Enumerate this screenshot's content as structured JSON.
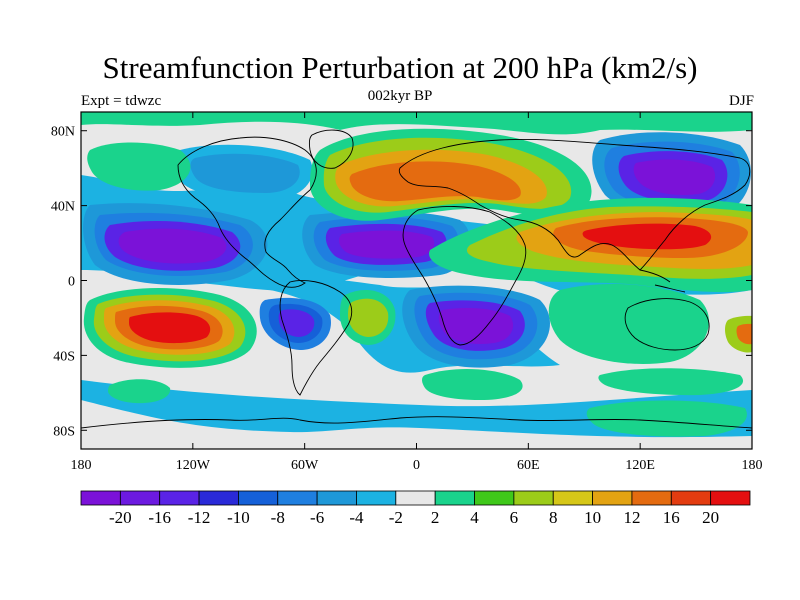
{
  "header": {
    "title": "Streamfunction Perturbation at 200 hPa (km2/s)",
    "left_label": "Expt = tdwzc",
    "center_label": "002kyr BP",
    "right_label": "DJF"
  },
  "map": {
    "projection": "cylindrical-equidistant",
    "lon_range": [
      -180,
      180
    ],
    "lat_range": [
      -90,
      90
    ],
    "lon_ticks": [
      {
        "value": -180,
        "label": "180"
      },
      {
        "value": -120,
        "label": "120W"
      },
      {
        "value": -60,
        "label": "60W"
      },
      {
        "value": 0,
        "label": "0"
      },
      {
        "value": 60,
        "label": "60E"
      },
      {
        "value": 120,
        "label": "120E"
      },
      {
        "value": 180,
        "label": "180"
      }
    ],
    "lat_ticks": [
      {
        "value": 80,
        "label": "80N"
      },
      {
        "value": 40,
        "label": "40N"
      },
      {
        "value": 0,
        "label": "0"
      },
      {
        "value": -40,
        "label": "40S"
      },
      {
        "value": -80,
        "label": "80S"
      }
    ],
    "background_color": "#e8e8e8",
    "coastline_color": "#000000"
  },
  "colorbar": {
    "colors": [
      "#7b12d8",
      "#6c1ae0",
      "#5a23e6",
      "#2a2ad8",
      "#1560d8",
      "#1f7fe0",
      "#1e98d8",
      "#1cb2e2",
      "#e8e8e8",
      "#1ad38c",
      "#3fc81a",
      "#9ccc19",
      "#d6c718",
      "#e3a312",
      "#e46b10",
      "#e33c10",
      "#e40f10"
    ],
    "labels": [
      "-20",
      "-16",
      "-12",
      "-10",
      "-8",
      "-6",
      "-4",
      "-2",
      "2",
      "4",
      "6",
      "8",
      "10",
      "12",
      "16",
      "20"
    ]
  },
  "chart_data": {
    "type": "heatmap",
    "title": "Streamfunction Perturbation at 200 hPa (km2/s)",
    "subtitle": "002kyr BP",
    "levels": [
      -20,
      -16,
      -12,
      -10,
      -8,
      -6,
      -4,
      -2,
      2,
      4,
      6,
      8,
      10,
      12,
      16,
      20
    ],
    "xlim": [
      -180,
      180
    ],
    "ylim": [
      -90,
      90
    ],
    "features": [
      {
        "lon": -135,
        "lat": 20,
        "value": -22
      },
      {
        "lon": -15,
        "lat": 22,
        "value": -22
      },
      {
        "lon": 25,
        "lat": -25,
        "value": -21
      },
      {
        "lon": 140,
        "lat": 55,
        "value": -20
      },
      {
        "lon": -65,
        "lat": -22,
        "value": -14
      },
      {
        "lon": -135,
        "lat": -22,
        "value": 22
      },
      {
        "lon": 120,
        "lat": 20,
        "value": 24
      },
      {
        "lon": 0,
        "lat": 55,
        "value": 15
      },
      {
        "lon": -25,
        "lat": -18,
        "value": 10
      },
      {
        "lon": 100,
        "lat": -15,
        "value": 7
      },
      {
        "lon": 125,
        "lat": -70,
        "value": 4
      },
      {
        "lon": -150,
        "lat": 58,
        "value": 4
      },
      {
        "lon": 90,
        "lat": 68,
        "value": 8
      },
      {
        "lon": 175,
        "lat": -28,
        "value": 12
      }
    ]
  }
}
